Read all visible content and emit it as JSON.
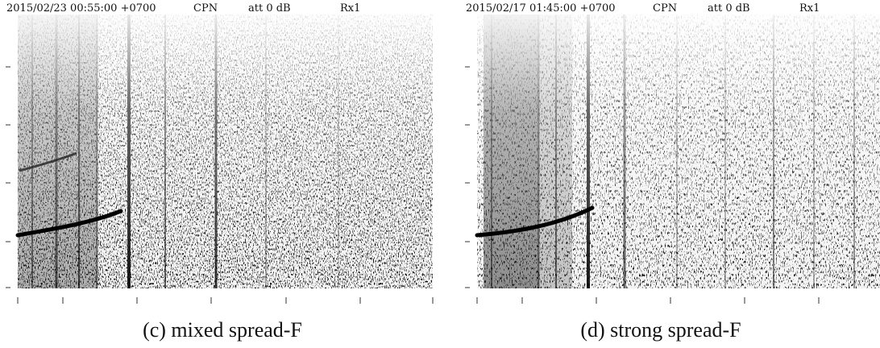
{
  "panels": [
    {
      "timestamp": "2015/02/23 00:55:00 +0700",
      "station": "CPN",
      "attenuation": "att 0 dB",
      "receiver": "Rx1",
      "caption": "(c) mixed spread-F"
    },
    {
      "timestamp": "2015/02/17 01:45:00 +0700",
      "station": "CPN",
      "attenuation": "att 0 dB",
      "receiver": "Rx1",
      "caption": "(d) strong spread-F"
    }
  ]
}
